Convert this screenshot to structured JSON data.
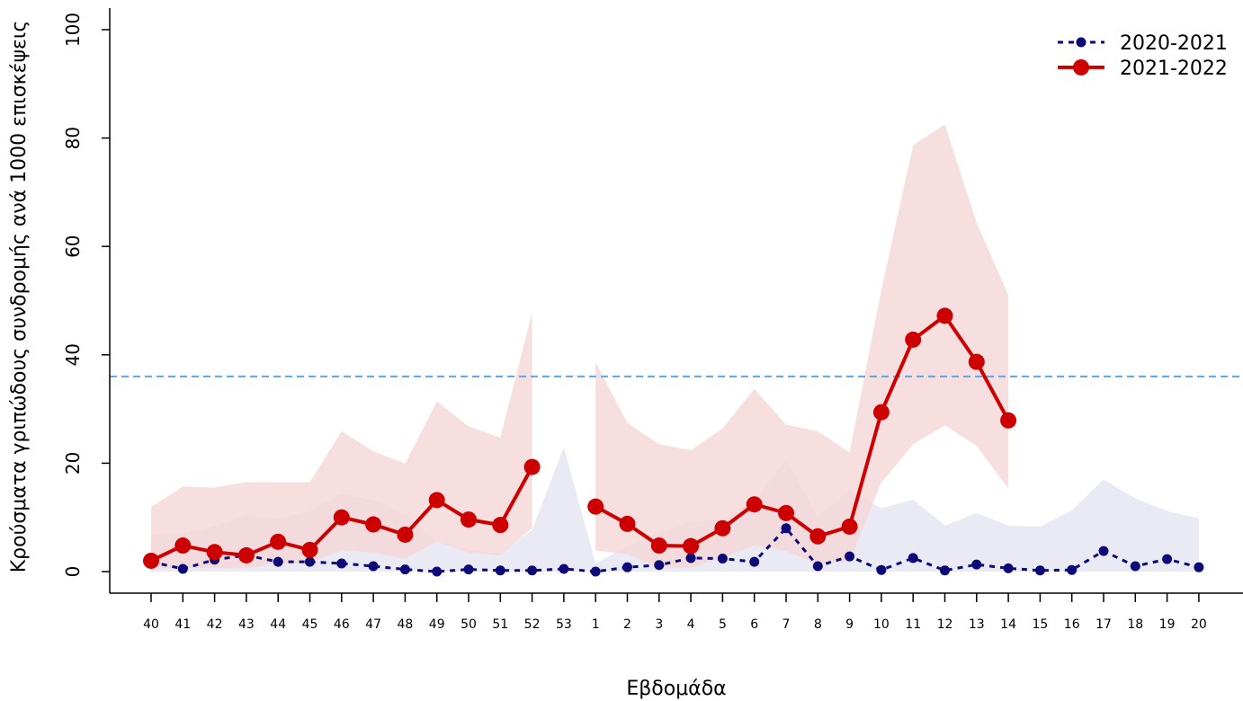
{
  "chart_data": {
    "type": "line",
    "title": "",
    "xlabel": "Εβδομάδα",
    "ylabel": "Κρούσματα γριπώδους συνδρομής ανά 1000 επισκέψεις",
    "ylim": [
      0,
      100
    ],
    "yticks": [
      0,
      20,
      40,
      60,
      80,
      100
    ],
    "categories": [
      "40",
      "41",
      "42",
      "43",
      "44",
      "45",
      "46",
      "47",
      "48",
      "49",
      "50",
      "51",
      "52",
      "53",
      "1",
      "2",
      "3",
      "4",
      "5",
      "6",
      "7",
      "8",
      "9",
      "10",
      "11",
      "12",
      "13",
      "14",
      "15",
      "16",
      "17",
      "18",
      "19",
      "20"
    ],
    "threshold": {
      "value": 36,
      "color": "#5aa6e6",
      "style": "dashed"
    },
    "legend_position": "top-right",
    "grid": false,
    "series": [
      {
        "name": "2020-2021",
        "color": "#0d0a78",
        "line_style": "dotted",
        "values": [
          1.8,
          0.5,
          2.2,
          3.0,
          1.8,
          1.8,
          1.5,
          1.0,
          0.4,
          0.0,
          0.4,
          0.2,
          0.2,
          0.5,
          0.0,
          0.8,
          1.2,
          2.5,
          2.4,
          1.8,
          8.0,
          1.0,
          2.8,
          0.3,
          2.5,
          0.2,
          1.3,
          0.6,
          0.2,
          0.3,
          3.8,
          1.0,
          2.3,
          0.8
        ],
        "band_color": "#e6e6f3",
        "band_upper": [
          6.8,
          7.0,
          8.3,
          10.3,
          9.7,
          11.2,
          14.3,
          13.2,
          10.5,
          5.6,
          4.0,
          3.3,
          7.7,
          23.0,
          1.5,
          4.7,
          7.1,
          9.2,
          9.6,
          13.0,
          20.7,
          10.0,
          15.0,
          11.7,
          13.3,
          8.5,
          10.8,
          8.5,
          8.3,
          11.3,
          17.0,
          13.5,
          11.2,
          9.8
        ],
        "band_lower": [
          0,
          0,
          0,
          0,
          0,
          0,
          0,
          0,
          0,
          0,
          0,
          0,
          0,
          0,
          0,
          0,
          0,
          0,
          0,
          0,
          0,
          0,
          0,
          0,
          0,
          0,
          0,
          0,
          0,
          0,
          0,
          0,
          0,
          0
        ]
      },
      {
        "name": "2021-2022",
        "color": "#cc0000",
        "line_style": "solid",
        "values": [
          2.0,
          4.8,
          3.6,
          3.0,
          5.5,
          4.0,
          10.0,
          8.7,
          6.8,
          13.2,
          9.6,
          8.6,
          19.3,
          null,
          12.0,
          8.8,
          4.8,
          4.7,
          8.0,
          12.4,
          10.8,
          6.5,
          8.3,
          29.4,
          42.8,
          47.2,
          38.7,
          27.9,
          null,
          null,
          null,
          null,
          null,
          null
        ],
        "band_color": "#f4d4d4",
        "band_upper": [
          11.9,
          15.7,
          15.5,
          16.5,
          16.5,
          16.5,
          25.9,
          22.2,
          19.9,
          31.4,
          26.8,
          24.7,
          47.8,
          null,
          38.7,
          27.4,
          23.5,
          22.4,
          26.4,
          33.7,
          27.1,
          25.9,
          22.0,
          52.0,
          78.7,
          82.5,
          64.4,
          51.0,
          null,
          null,
          null,
          null,
          null,
          null
        ],
        "band_lower": [
          0.5,
          0.7,
          0.6,
          0.6,
          1.5,
          1.6,
          3.9,
          3.5,
          2.3,
          5.6,
          3.5,
          3.0,
          8.0,
          null,
          3.9,
          3.2,
          0.8,
          0.7,
          2.5,
          4.8,
          3.8,
          1.4,
          1.9,
          16.4,
          23.5,
          27.0,
          23.2,
          15.3,
          null,
          null,
          null,
          null,
          null,
          null
        ]
      }
    ]
  }
}
